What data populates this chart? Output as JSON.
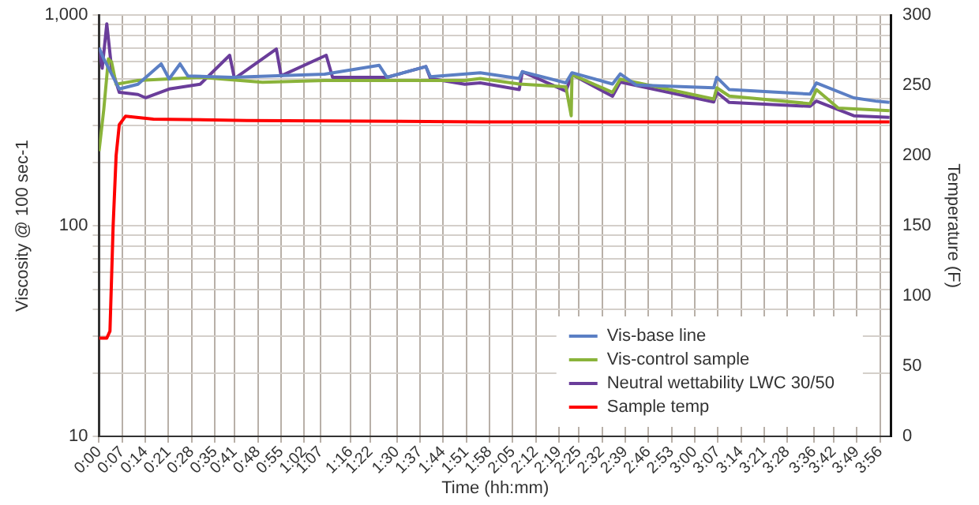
{
  "chart_data": {
    "type": "line",
    "xlabel": "Time (hh:mm)",
    "ylabel": "Viscosity @ 100 sec-1",
    "y2label": "Temperature (F)",
    "xlim": [
      0,
      3.99
    ],
    "xticks": [
      {
        "value": 0,
        "label": "0:00"
      },
      {
        "value": 0.1167,
        "label": "0:07"
      },
      {
        "value": 0.2333,
        "label": "0:14"
      },
      {
        "value": 0.35,
        "label": "0:21"
      },
      {
        "value": 0.4667,
        "label": "0:28"
      },
      {
        "value": 0.5833,
        "label": "0:35"
      },
      {
        "value": 0.6833,
        "label": "0:41"
      },
      {
        "value": 0.8,
        "label": "0:48"
      },
      {
        "value": 0.9167,
        "label": "0:55"
      },
      {
        "value": 1.0333,
        "label": "1:02"
      },
      {
        "value": 1.1167,
        "label": "1:07"
      },
      {
        "value": 1.2667,
        "label": "1:16"
      },
      {
        "value": 1.3667,
        "label": "1:22"
      },
      {
        "value": 1.5,
        "label": "1:30"
      },
      {
        "value": 1.6167,
        "label": "1:37"
      },
      {
        "value": 1.7333,
        "label": "1:44"
      },
      {
        "value": 1.85,
        "label": "1:51"
      },
      {
        "value": 1.9667,
        "label": "1:58"
      },
      {
        "value": 2.0833,
        "label": "2:05"
      },
      {
        "value": 2.2,
        "label": "2:12"
      },
      {
        "value": 2.3167,
        "label": "2:19"
      },
      {
        "value": 2.4167,
        "label": "2:25"
      },
      {
        "value": 2.5333,
        "label": "2:32"
      },
      {
        "value": 2.65,
        "label": "2:39"
      },
      {
        "value": 2.7667,
        "label": "2:46"
      },
      {
        "value": 2.8833,
        "label": "2:53"
      },
      {
        "value": 3,
        "label": "3:00"
      },
      {
        "value": 3.1167,
        "label": "3:07"
      },
      {
        "value": 3.2333,
        "label": "3:14"
      },
      {
        "value": 3.35,
        "label": "3:21"
      },
      {
        "value": 3.4667,
        "label": "3:28"
      },
      {
        "value": 3.6,
        "label": "3:36"
      },
      {
        "value": 3.7,
        "label": "3:42"
      },
      {
        "value": 3.8167,
        "label": "3:49"
      },
      {
        "value": 3.9333,
        "label": "3:56"
      }
    ],
    "log": "y",
    "ylim": [
      10,
      1000
    ],
    "yticks": [
      10,
      {
        "value": 20,
        "label": null
      },
      {
        "value": 30,
        "label": null
      },
      {
        "value": 40,
        "label": null
      },
      {
        "value": 50,
        "label": null
      },
      {
        "value": 60,
        "label": null
      },
      {
        "value": 70,
        "label": null
      },
      {
        "value": 80,
        "label": null
      },
      {
        "value": 90,
        "label": null
      },
      100,
      {
        "value": 200,
        "label": null
      },
      {
        "value": 300,
        "label": null
      },
      {
        "value": 400,
        "label": null
      },
      {
        "value": 500,
        "label": null
      },
      {
        "value": 600,
        "label": null
      },
      {
        "value": 700,
        "label": null
      },
      {
        "value": 800,
        "label": null
      },
      {
        "value": 900,
        "label": null
      },
      {
        "value": 1000,
        "label": "1,000"
      }
    ],
    "y2lim": [
      0,
      300
    ],
    "y2ticks": [
      0,
      50,
      100,
      150,
      200,
      250,
      300
    ],
    "grid": true,
    "legend": "bottom right",
    "marker": "none",
    "line_style": "solid",
    "series": [
      {
        "name": "Vis-base line",
        "color": "#5b7fc4",
        "x": [
          0,
          0.024,
          0.102,
          0.196,
          0.313,
          0.353,
          0.408,
          0.447,
          0.666,
          1.136,
          1.411,
          1.45,
          1.646,
          1.669,
          1.92,
          2.116,
          2.132,
          2.351,
          2.382,
          2.586,
          2.625,
          2.704,
          3.096,
          3.111,
          3.174,
          3.581,
          3.613,
          3.801,
          3.918,
          3.981
        ],
        "values": [
          700,
          620,
          446,
          470,
          587,
          498,
          587,
          515,
          507,
          525,
          578,
          507,
          570,
          510,
          533,
          500,
          539,
          477,
          533,
          471,
          526,
          466,
          452,
          507,
          443,
          422,
          477,
          405,
          390,
          385
        ]
      },
      {
        "name": "Vis-control sample",
        "color": "#8ab33a",
        "x": [
          0,
          0.024,
          0.047,
          0.063,
          0.086,
          0.196,
          0.509,
          0.823,
          1.136,
          1.528,
          1.842,
          1.92,
          2.116,
          2.351,
          2.378,
          2.382,
          2.586,
          2.625,
          3.096,
          3.111,
          3.174,
          3.581,
          3.613,
          3.723,
          3.981
        ],
        "values": [
          226,
          358,
          620,
          600,
          470,
          490,
          507,
          480,
          490,
          490,
          490,
          500,
          471,
          457,
          333,
          522,
          430,
          497,
          400,
          452,
          413,
          380,
          443,
          362,
          352
        ]
      },
      {
        "name": "Neutral wettability LWC 30/50",
        "color": "#6a3d9a",
        "x": [
          0,
          0.016,
          0.039,
          0.063,
          0.102,
          0.196,
          0.235,
          0.353,
          0.509,
          0.658,
          0.682,
          0.893,
          0.917,
          1.144,
          1.176,
          1.45,
          1.646,
          1.669,
          1.842,
          1.92,
          2.116,
          2.132,
          2.351,
          2.382,
          2.586,
          2.625,
          3.096,
          3.111,
          3.174,
          3.581,
          3.613,
          3.801,
          3.981
        ],
        "values": [
          700,
          560,
          910,
          560,
          430,
          420,
          405,
          446,
          470,
          645,
          500,
          690,
          515,
          645,
          507,
          507,
          570,
          500,
          470,
          477,
          443,
          539,
          436,
          522,
          412,
          481,
          387,
          430,
          385,
          369,
          391,
          333,
          327
        ]
      },
      {
        "name": "Sample temp",
        "color": "#ff0000",
        "axis": "y2",
        "x": [
          0,
          0.039,
          0.055,
          0.071,
          0.086,
          0.102,
          0.133,
          0.274,
          0.745,
          1.92,
          3.981
        ],
        "values": [
          70,
          70,
          75,
          150,
          200,
          222,
          228,
          226,
          225,
          224,
          224
        ]
      }
    ]
  }
}
